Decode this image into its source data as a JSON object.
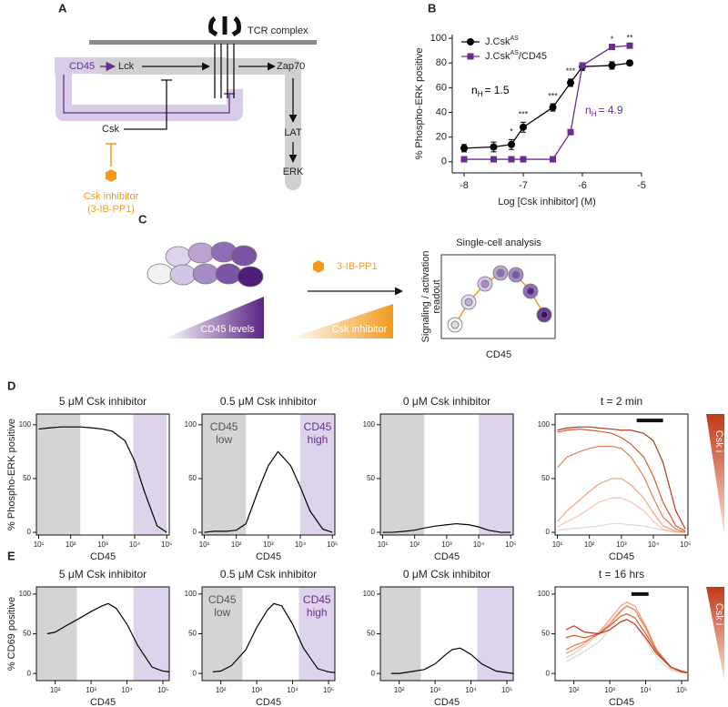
{
  "panel_labels": [
    "A",
    "B",
    "C",
    "D",
    "E"
  ],
  "diagram_a": {
    "tcr": "TCR complex",
    "cd45": "CD45",
    "lck": "Lck",
    "zap70": "Zap70",
    "lat": "LAT",
    "erk": "ERK",
    "csk": "Csk",
    "inhibitor": [
      "Csk inhibitor",
      "(3-IB-PP1)"
    ]
  },
  "diagram_c": {
    "drug": "3-IB-PP1",
    "title": "Single-cell analysis",
    "readout": [
      "Signaling / activation",
      "readout"
    ],
    "cd45_levels": "CD45 levels",
    "csk_inhibitor": "Csk inhibitor",
    "xlabel": "CD45"
  },
  "chart_data": [
    {
      "type": "line",
      "xlabel": "Log [Csk inhibitor] (M)",
      "ylabel": "% Phospho-ERK positive",
      "x": [
        -8,
        -7.5,
        -7.2,
        -7,
        -6.5,
        -6.2,
        -6,
        -5.5,
        -5.2
      ],
      "xlim": [
        -8.2,
        -5
      ],
      "xticks": [
        -8,
        -7,
        -6,
        -5
      ],
      "ylim": [
        -9,
        103
      ],
      "yticks": [
        0,
        20,
        40,
        60,
        80,
        100
      ],
      "series": [
        {
          "name": "J.Csk",
          "name_sup": "AS",
          "marker": "circle",
          "color": "#000000",
          "values": [
            11,
            12,
            14,
            28,
            44,
            64,
            77,
            78,
            80
          ],
          "errors": [
            3,
            4,
            4,
            4,
            3,
            3,
            3,
            3,
            2
          ],
          "fit_label": {
            "n": "n",
            "sub": "H",
            "text": "= 1.5"
          }
        },
        {
          "name": "J.Csk",
          "name_sup": "AS",
          "name_suffix": "/CD45",
          "marker": "square",
          "color": "#6a2c91",
          "values": [
            2,
            2,
            2,
            2,
            2,
            24,
            78,
            93,
            94
          ],
          "fit_label": {
            "n": "n",
            "sub": "H",
            "text": "= 4.9"
          }
        }
      ],
      "significance": [
        {
          "x": -7.2,
          "label": "*"
        },
        {
          "x": -7,
          "label": "***"
        },
        {
          "x": -6.5,
          "label": "***"
        },
        {
          "x": -6.2,
          "label": "***"
        },
        {
          "x": -5.5,
          "label": "*"
        },
        {
          "x": -5.2,
          "label": "**"
        }
      ]
    },
    {
      "type": "line",
      "title": "5 μM Csk inhibitor",
      "ylabel": "% Phospho-ERK positive",
      "xlabel": "CD45",
      "xscale": "log",
      "xlim": [
        8.5,
        120000
      ],
      "xticks": [
        {
          "value": 10,
          "label": "10¹"
        },
        {
          "value": 100,
          "label": "10²"
        },
        {
          "value": 1000,
          "label": "10³"
        },
        {
          "value": 10000,
          "label": "10⁴"
        },
        {
          "value": 100000,
          "label": "10⁵"
        }
      ],
      "ylim": [
        -2.5,
        110
      ],
      "yticks": [
        0,
        50,
        100
      ],
      "shaded": [
        {
          "from": 8.5,
          "to": 200,
          "color": "#d4d4d4"
        },
        {
          "from": 9000,
          "to": 100000,
          "color": "#ddd3ea"
        }
      ],
      "x": [
        10,
        20,
        50,
        100,
        200,
        500,
        1000,
        2000,
        5000,
        10000,
        20000,
        50000,
        100000
      ],
      "series": [
        {
          "color": "#000000",
          "values": [
            96,
            97,
            98,
            98,
            98,
            97,
            96,
            94,
            85,
            66,
            38,
            6,
            0
          ]
        }
      ]
    },
    {
      "type": "line",
      "title": "0.5 μM Csk inhibitor",
      "xlabel": "CD45",
      "xscale": "log",
      "xlim": [
        8.5,
        120000
      ],
      "xticks": [
        {
          "value": 10,
          "label": "10¹"
        },
        {
          "value": 100,
          "label": "10²"
        },
        {
          "value": 1000,
          "label": "10³"
        },
        {
          "value": 10000,
          "label": "10⁴"
        },
        {
          "value": 100000,
          "label": "10⁵"
        }
      ],
      "ylim": [
        -2.5,
        110
      ],
      "yticks": [
        0,
        50,
        100
      ],
      "shaded": [
        {
          "from": 8.5,
          "to": 200,
          "color": "#d4d4d4",
          "label": [
            "CD45",
            "low"
          ],
          "label_color": "#555555"
        },
        {
          "from": 10000,
          "to": 120000,
          "color": "#ddd3ea",
          "label": [
            "CD45",
            "high"
          ],
          "label_color": "#6a2c91"
        }
      ],
      "x": [
        10,
        20,
        50,
        100,
        200,
        500,
        1000,
        2000,
        5000,
        10000,
        20000,
        50000,
        100000
      ],
      "series": [
        {
          "color": "#000000",
          "values": [
            0,
            1,
            1,
            2,
            8,
            40,
            62,
            75,
            62,
            42,
            20,
            3,
            0
          ]
        }
      ]
    },
    {
      "type": "line",
      "title": "0 μM Csk inhibitor",
      "xlabel": "CD45",
      "xscale": "log",
      "xlim": [
        8.5,
        120000
      ],
      "xticks": [
        {
          "value": 10,
          "label": "10¹"
        },
        {
          "value": 100,
          "label": "10²"
        },
        {
          "value": 1000,
          "label": "10³"
        },
        {
          "value": 10000,
          "label": "10⁴"
        },
        {
          "value": 100000,
          "label": "10⁵"
        }
      ],
      "ylim": [
        -2.5,
        110
      ],
      "yticks": [
        0,
        50,
        100
      ],
      "shaded": [
        {
          "from": 8.5,
          "to": 200,
          "color": "#d4d4d4"
        },
        {
          "from": 10000,
          "to": 120000,
          "color": "#ddd3ea"
        }
      ],
      "x": [
        10,
        20,
        50,
        100,
        200,
        500,
        1000,
        2000,
        5000,
        10000,
        20000,
        50000,
        100000
      ],
      "series": [
        {
          "color": "#000000",
          "values": [
            0,
            0,
            1,
            2,
            4,
            6,
            7,
            8,
            7,
            5,
            2,
            0,
            0
          ]
        }
      ]
    },
    {
      "type": "line",
      "title": "t = 2 min",
      "xlabel": "CD45",
      "xscale": "log",
      "gradient_label": "Csk i",
      "xlim": [
        8.5,
        120000
      ],
      "xticks": [
        {
          "value": 10,
          "label": "10¹"
        },
        {
          "value": 100,
          "label": "10²"
        },
        {
          "value": 1000,
          "label": "10³"
        },
        {
          "value": 10000,
          "label": "10⁴"
        },
        {
          "value": 100000,
          "label": "10⁵"
        }
      ],
      "ylim": [
        -2.5,
        110
      ],
      "yticks": [
        0,
        50,
        100
      ],
      "bar": {
        "from": 3000,
        "to": 20000,
        "y": 104
      },
      "x": [
        10,
        20,
        50,
        100,
        200,
        500,
        1000,
        2000,
        5000,
        10000,
        20000,
        50000,
        100000
      ],
      "series": [
        {
          "color": "#d9d9d9",
          "values": [
            2,
            3,
            4,
            5,
            6,
            8,
            8,
            7,
            6,
            4,
            2,
            0,
            0
          ]
        },
        {
          "color": "#f8c4ab",
          "values": [
            5,
            10,
            16,
            22,
            28,
            32,
            32,
            28,
            20,
            10,
            3,
            0,
            0
          ]
        },
        {
          "color": "#f3a07f",
          "values": [
            10,
            20,
            30,
            38,
            45,
            50,
            50,
            44,
            32,
            18,
            6,
            1,
            0
          ]
        },
        {
          "color": "#ea7d55",
          "values": [
            60,
            70,
            75,
            78,
            80,
            80,
            78,
            70,
            52,
            32,
            14,
            3,
            0
          ]
        },
        {
          "color": "#dc5a2c",
          "values": [
            93,
            95,
            96,
            95,
            94,
            92,
            88,
            82,
            70,
            52,
            28,
            6,
            1
          ]
        },
        {
          "color": "#b5381c",
          "values": [
            95,
            97,
            98,
            98,
            97,
            96,
            95,
            95,
            92,
            85,
            65,
            20,
            3
          ]
        }
      ]
    },
    {
      "type": "line",
      "title": "5 μM Csk inhibitor",
      "ylabel": "% CD69 positive",
      "xlabel": "CD45",
      "xscale": "log",
      "xlim": [
        30,
        150000
      ],
      "xticks": [
        {
          "value": 100,
          "label": "10²"
        },
        {
          "value": 1000,
          "label": "10³"
        },
        {
          "value": 10000,
          "label": "10⁴"
        },
        {
          "value": 100000,
          "label": "10⁵"
        }
      ],
      "ylim": [
        -9,
        109
      ],
      "yticks": [
        0,
        50,
        100
      ],
      "shaded": [
        {
          "from": 30,
          "to": 400,
          "color": "#d4d4d4"
        },
        {
          "from": 15000,
          "to": 150000,
          "color": "#ddd3ea"
        }
      ],
      "x": [
        60,
        100,
        200,
        500,
        1000,
        2000,
        3000,
        5000,
        10000,
        20000,
        50000,
        100000,
        150000
      ],
      "series": [
        {
          "color": "#000000",
          "values": [
            50,
            52,
            60,
            70,
            78,
            85,
            88,
            82,
            62,
            35,
            8,
            3,
            2
          ]
        }
      ]
    },
    {
      "type": "line",
      "title": "0.5 μM Csk inhibitor",
      "xlabel": "CD45",
      "xscale": "log",
      "xlim": [
        30,
        150000
      ],
      "xticks": [
        {
          "value": 100,
          "label": "10²"
        },
        {
          "value": 1000,
          "label": "10³"
        },
        {
          "value": 10000,
          "label": "10⁴"
        },
        {
          "value": 100000,
          "label": "10⁵"
        }
      ],
      "ylim": [
        -9,
        109
      ],
      "yticks": [
        0,
        50,
        100
      ],
      "shaded": [
        {
          "from": 30,
          "to": 400,
          "color": "#d4d4d4",
          "label": [
            "CD45",
            "low"
          ],
          "label_color": "#555555"
        },
        {
          "from": 15000,
          "to": 150000,
          "color": "#ddd3ea",
          "label": [
            "CD45",
            "high"
          ],
          "label_color": "#6a2c91"
        }
      ],
      "x": [
        60,
        100,
        200,
        500,
        1000,
        2000,
        3000,
        5000,
        10000,
        20000,
        50000,
        100000,
        150000
      ],
      "series": [
        {
          "color": "#000000",
          "values": [
            2,
            3,
            10,
            30,
            58,
            80,
            88,
            85,
            62,
            32,
            6,
            2,
            1
          ]
        }
      ]
    },
    {
      "type": "line",
      "title": "0 μM Csk inhibitor",
      "xlabel": "CD45",
      "xscale": "log",
      "xlim": [
        30,
        150000
      ],
      "xticks": [
        {
          "value": 100,
          "label": "10²"
        },
        {
          "value": 1000,
          "label": "10³"
        },
        {
          "value": 10000,
          "label": "10⁴"
        },
        {
          "value": 100000,
          "label": "10⁵"
        }
      ],
      "ylim": [
        -9,
        109
      ],
      "yticks": [
        0,
        50,
        100
      ],
      "shaded": [
        {
          "from": 30,
          "to": 400,
          "color": "#d4d4d4"
        },
        {
          "from": 15000,
          "to": 150000,
          "color": "#ddd3ea"
        }
      ],
      "x": [
        60,
        100,
        200,
        500,
        1000,
        2000,
        3000,
        5000,
        10000,
        20000,
        50000,
        100000,
        150000
      ],
      "series": [
        {
          "color": "#000000",
          "values": [
            0,
            0,
            2,
            5,
            12,
            24,
            30,
            32,
            24,
            12,
            3,
            1,
            0
          ]
        }
      ]
    },
    {
      "type": "line",
      "title": "t = 16 hrs",
      "xlabel": "CD45",
      "xscale": "log",
      "gradient_label": "Csk i",
      "xlim": [
        30,
        150000
      ],
      "xticks": [
        {
          "value": 100,
          "label": "10²"
        },
        {
          "value": 1000,
          "label": "10³"
        },
        {
          "value": 10000,
          "label": "10⁴"
        },
        {
          "value": 100000,
          "label": "10⁵"
        }
      ],
      "ylim": [
        -9,
        109
      ],
      "yticks": [
        0,
        50,
        100
      ],
      "bar": {
        "from": 4000,
        "to": 12000,
        "y": 100
      },
      "x": [
        60,
        100,
        200,
        500,
        1000,
        2000,
        3000,
        5000,
        10000,
        20000,
        50000,
        100000,
        150000
      ],
      "series": [
        {
          "color": "#d9d9d9",
          "values": [
            15,
            20,
            28,
            40,
            55,
            65,
            68,
            62,
            42,
            20,
            4,
            1,
            0
          ]
        },
        {
          "color": "#f8c4ab",
          "values": [
            20,
            25,
            35,
            50,
            65,
            80,
            85,
            80,
            55,
            28,
            6,
            1,
            0
          ]
        },
        {
          "color": "#f3a07f",
          "values": [
            25,
            30,
            38,
            52,
            68,
            85,
            90,
            85,
            60,
            30,
            8,
            2,
            0
          ]
        },
        {
          "color": "#ea7d55",
          "values": [
            30,
            35,
            40,
            50,
            62,
            78,
            85,
            80,
            58,
            30,
            8,
            2,
            1
          ]
        },
        {
          "color": "#dc5a2c",
          "values": [
            45,
            48,
            45,
            50,
            60,
            72,
            75,
            70,
            50,
            28,
            8,
            2,
            1
          ]
        },
        {
          "color": "#b5381c",
          "values": [
            55,
            60,
            52,
            50,
            55,
            65,
            68,
            62,
            45,
            25,
            8,
            3,
            1
          ]
        }
      ]
    }
  ]
}
